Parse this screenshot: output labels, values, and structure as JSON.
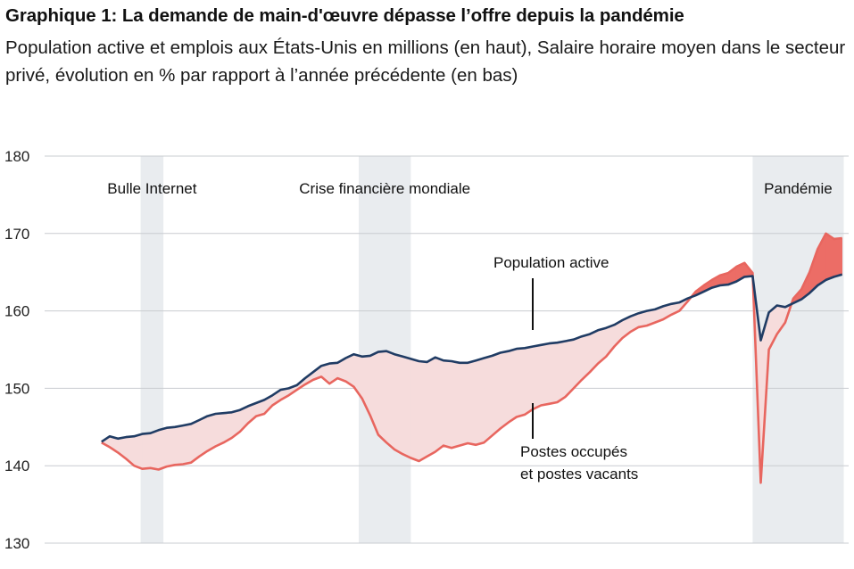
{
  "title": "Graphique 1: La demande de main-d'œuvre dépasse l’offre depuis la pandémie",
  "subtitle": "Population active et emplois aux États-Unis en millions (en haut), Salaire horaire moyen dans le secteur privé, évolution en % par rapport à l’année précédente (en bas)",
  "chart_data": {
    "type": "line",
    "title": "Graphique 1: La demande de main-d'œuvre dépasse l’offre depuis la pandémie",
    "ylim": [
      130,
      180
    ],
    "yticks": [
      130,
      140,
      150,
      160,
      170,
      180
    ],
    "grid": true,
    "colors": {
      "labor_force": "#203c64",
      "jobs": "#e8665f",
      "gap_fill": "#f6dcdc",
      "shortage_fill": "#ec6d66",
      "recession": "#e9ecef"
    },
    "recessions": [
      {
        "label": "Bulle Internet",
        "start": 2001.2,
        "end": 2001.9
      },
      {
        "label": "Crise financière mondiale",
        "start": 2007.9,
        "end": 2009.5
      },
      {
        "label": "Pandémie",
        "start": 2020.0,
        "end": 2022.8
      }
    ],
    "series": [
      {
        "name": "Population active",
        "x": [
          2000.0,
          2000.25,
          2000.5,
          2000.75,
          2001.0,
          2001.25,
          2001.5,
          2001.75,
          2002.0,
          2002.25,
          2002.5,
          2002.75,
          2003.0,
          2003.25,
          2003.5,
          2003.75,
          2004.0,
          2004.25,
          2004.5,
          2004.75,
          2005.0,
          2005.25,
          2005.5,
          2005.75,
          2006.0,
          2006.25,
          2006.5,
          2006.75,
          2007.0,
          2007.25,
          2007.5,
          2007.75,
          2008.0,
          2008.25,
          2008.5,
          2008.75,
          2009.0,
          2009.25,
          2009.5,
          2009.75,
          2010.0,
          2010.25,
          2010.5,
          2010.75,
          2011.0,
          2011.25,
          2011.5,
          2011.75,
          2012.0,
          2012.25,
          2012.5,
          2012.75,
          2013.0,
          2013.25,
          2013.5,
          2013.75,
          2014.0,
          2014.25,
          2014.5,
          2014.75,
          2015.0,
          2015.25,
          2015.5,
          2015.75,
          2016.0,
          2016.25,
          2016.5,
          2016.75,
          2017.0,
          2017.25,
          2017.5,
          2017.75,
          2018.0,
          2018.25,
          2018.5,
          2018.75,
          2019.0,
          2019.25,
          2019.5,
          2019.75,
          2020.0,
          2020.25,
          2020.5,
          2020.75,
          2021.0,
          2021.25,
          2021.5,
          2021.75,
          2022.0,
          2022.25,
          2022.5,
          2022.75
        ],
        "values": [
          143.1,
          143.8,
          143.5,
          143.7,
          143.8,
          144.1,
          144.2,
          144.6,
          144.9,
          145.0,
          145.2,
          145.4,
          145.9,
          146.4,
          146.7,
          146.8,
          146.9,
          147.2,
          147.7,
          148.1,
          148.5,
          149.1,
          149.8,
          150.0,
          150.4,
          151.3,
          152.1,
          152.9,
          153.2,
          153.3,
          153.9,
          154.4,
          154.1,
          154.2,
          154.7,
          154.8,
          154.4,
          154.1,
          153.8,
          153.5,
          153.4,
          154.0,
          153.6,
          153.5,
          153.3,
          153.3,
          153.6,
          153.9,
          154.2,
          154.6,
          154.8,
          155.1,
          155.2,
          155.4,
          155.6,
          155.8,
          155.9,
          156.1,
          156.3,
          156.7,
          157.0,
          157.5,
          157.8,
          158.2,
          158.8,
          159.3,
          159.7,
          160.0,
          160.2,
          160.6,
          160.9,
          161.1,
          161.6,
          162.0,
          162.5,
          163.0,
          163.3,
          163.4,
          163.8,
          164.4,
          164.5,
          156.2,
          159.8,
          160.7,
          160.5,
          161.0,
          161.5,
          162.3,
          163.3,
          164.0,
          164.4,
          164.7
        ]
      },
      {
        "name": "Postes occupés et postes vacants",
        "x": [
          2000.0,
          2000.25,
          2000.5,
          2000.75,
          2001.0,
          2001.25,
          2001.5,
          2001.75,
          2002.0,
          2002.25,
          2002.5,
          2002.75,
          2003.0,
          2003.25,
          2003.5,
          2003.75,
          2004.0,
          2004.25,
          2004.5,
          2004.75,
          2005.0,
          2005.25,
          2005.5,
          2005.75,
          2006.0,
          2006.25,
          2006.5,
          2006.75,
          2007.0,
          2007.25,
          2007.5,
          2007.75,
          2008.0,
          2008.25,
          2008.5,
          2008.75,
          2009.0,
          2009.25,
          2009.5,
          2009.75,
          2010.0,
          2010.25,
          2010.5,
          2010.75,
          2011.0,
          2011.25,
          2011.5,
          2011.75,
          2012.0,
          2012.25,
          2012.5,
          2012.75,
          2013.0,
          2013.25,
          2013.5,
          2013.75,
          2014.0,
          2014.25,
          2014.5,
          2014.75,
          2015.0,
          2015.25,
          2015.5,
          2015.75,
          2016.0,
          2016.25,
          2016.5,
          2016.75,
          2017.0,
          2017.25,
          2017.5,
          2017.75,
          2018.0,
          2018.25,
          2018.5,
          2018.75,
          2019.0,
          2019.25,
          2019.5,
          2019.75,
          2020.0,
          2020.25,
          2020.5,
          2020.75,
          2021.0,
          2021.25,
          2021.5,
          2021.75,
          2022.0,
          2022.25,
          2022.5,
          2022.75
        ],
        "values": [
          143.0,
          142.4,
          141.7,
          140.9,
          140.0,
          139.6,
          139.7,
          139.5,
          139.9,
          140.1,
          140.2,
          140.4,
          141.2,
          141.9,
          142.5,
          143.0,
          143.6,
          144.4,
          145.5,
          146.4,
          146.7,
          147.8,
          148.5,
          149.1,
          149.8,
          150.5,
          151.1,
          151.5,
          150.6,
          151.3,
          150.9,
          150.2,
          148.7,
          146.5,
          144.0,
          143.0,
          142.1,
          141.5,
          141.0,
          140.6,
          141.2,
          141.8,
          142.6,
          142.3,
          142.6,
          142.9,
          142.7,
          143.0,
          143.9,
          144.8,
          145.6,
          146.3,
          146.6,
          147.3,
          147.8,
          148.0,
          148.2,
          148.9,
          150.0,
          151.1,
          152.1,
          153.2,
          154.1,
          155.4,
          156.5,
          157.3,
          157.9,
          158.1,
          158.5,
          158.9,
          159.5,
          160.0,
          161.2,
          162.5,
          163.3,
          164.0,
          164.6,
          164.9,
          165.7,
          166.2,
          164.9,
          137.8,
          155.0,
          157.0,
          158.5,
          161.6,
          162.8,
          165.0,
          168.0,
          170.0,
          169.3,
          169.4
        ]
      }
    ]
  },
  "annotations": {
    "labor_force": "Population active",
    "jobs_line1": "Postes occupés",
    "jobs_line2": "et postes vacants"
  }
}
